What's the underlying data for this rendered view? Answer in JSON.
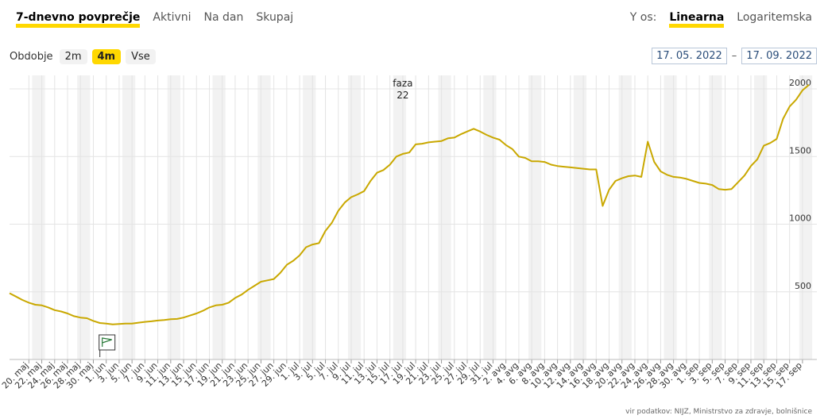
{
  "tabs": [
    "7-dnevno povprečje",
    "Aktivni",
    "Na dan",
    "Skupaj"
  ],
  "yaxis": {
    "label": "Y os:",
    "options": [
      "Linearna",
      "Logaritemska"
    ]
  },
  "period": {
    "label": "Obdobje",
    "options": [
      "2m",
      "4m",
      "Vse"
    ]
  },
  "date_range": {
    "from": "17. 05. 2022",
    "separator": "–",
    "to": "17. 09. 2022"
  },
  "source": "vir podatkov: NIJZ, Ministrstvo za zdravje, bolnišnice",
  "colors": {
    "line": "#c9a800",
    "accent": "#ffd800",
    "weekend_band": "#f2f2f2"
  },
  "chart_data": {
    "type": "line",
    "title": "",
    "xlabel": "",
    "ylabel": "",
    "ylim": [
      0,
      2100
    ],
    "yticks": [
      500,
      1000,
      1500,
      2000
    ],
    "grid": true,
    "xticks": [
      "20. maj",
      "22. maj",
      "24. maj",
      "26. maj",
      "28. maj",
      "30. maj",
      "1. jun",
      "3. jun",
      "5. jun",
      "7. jun",
      "9. jun",
      "11. jun",
      "13. jun",
      "15. jun",
      "17. jun",
      "19. jun",
      "21. jun",
      "23. jun",
      "25. jun",
      "27. jun",
      "29. jun",
      "1. jul",
      "3. jul",
      "5. jul",
      "7. jul",
      "9. jul",
      "11. jul",
      "13. jul",
      "15. jul",
      "17. jul",
      "19. jul",
      "21. jul",
      "23. jul",
      "25. jul",
      "27. jul",
      "29. jul",
      "31. jul",
      "2. avg",
      "4. avg",
      "6. avg",
      "8. avg",
      "10. avg",
      "12. avg",
      "14. avg",
      "16. avg",
      "18. avg",
      "20. avg",
      "22. avg",
      "24. avg",
      "26. avg",
      "28. avg",
      "30. avg",
      "1. sep",
      "3. sep",
      "5. sep",
      "7. sep",
      "9. sep",
      "11. sep",
      "13. sep",
      "15. sep",
      "17. sep"
    ],
    "annotations": [
      {
        "text": [
          "faza",
          "22"
        ],
        "x": "17. jul"
      }
    ],
    "series": [
      {
        "start": "17. 05. 2022",
        "values": [
          490,
          465,
          440,
          420,
          405,
          400,
          385,
          365,
          355,
          340,
          320,
          310,
          305,
          285,
          270,
          265,
          260,
          262,
          265,
          265,
          272,
          278,
          282,
          288,
          292,
          298,
          300,
          310,
          325,
          340,
          360,
          385,
          400,
          405,
          420,
          455,
          480,
          515,
          545,
          575,
          585,
          595,
          640,
          700,
          730,
          770,
          830,
          850,
          860,
          950,
          1010,
          1100,
          1160,
          1200,
          1220,
          1245,
          1320,
          1380,
          1400,
          1440,
          1500,
          1520,
          1530,
          1590,
          1595,
          1605,
          1610,
          1615,
          1635,
          1640,
          1665,
          1685,
          1705,
          1685,
          1660,
          1640,
          1625,
          1585,
          1555,
          1500,
          1490,
          1465,
          1465,
          1460,
          1440,
          1430,
          1425,
          1420,
          1415,
          1410,
          1405,
          1405,
          1135,
          1255,
          1320,
          1340,
          1355,
          1360,
          1350,
          1610,
          1460,
          1390,
          1365,
          1350,
          1345,
          1335,
          1320,
          1305,
          1300,
          1290,
          1260,
          1255,
          1260,
          1310,
          1360,
          1430,
          1480,
          1580,
          1600,
          1630,
          1780,
          1870,
          1920,
          1990,
          2030
        ]
      }
    ]
  }
}
